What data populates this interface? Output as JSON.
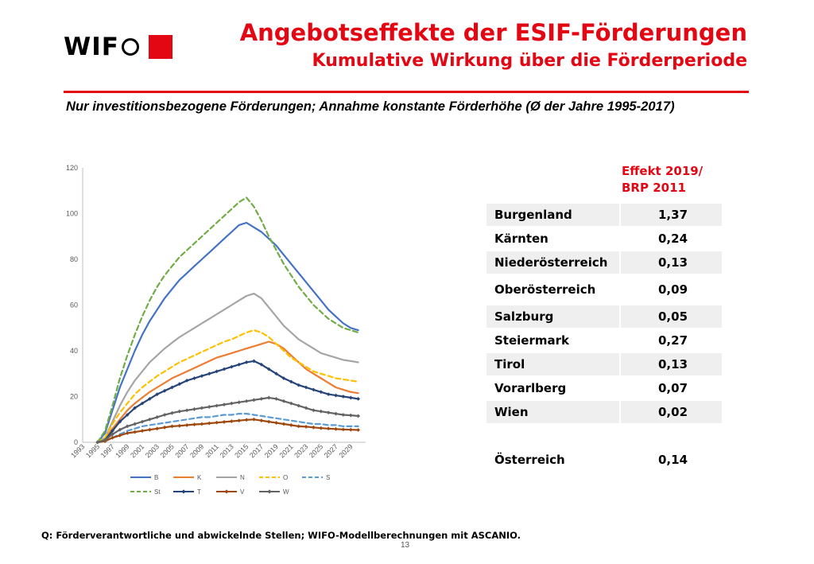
{
  "logo": {
    "text_wi": "WI",
    "text_f": "F",
    "brand_color": "#e30613"
  },
  "header": {
    "title": "Angebotseffekte der ESIF-Förderungen",
    "subtitle": "Kumulative Wirkung über die Förderperiode",
    "note": "Nur investitionsbezogene Förderungen; Annahme konstante Förderhöhe (Ø der Jahre 1995-2017)"
  },
  "chart_data": {
    "type": "line",
    "title": "",
    "xlabel": "",
    "ylabel": "",
    "ylim": [
      0,
      120
    ],
    "y_ticks": [
      "0",
      "20",
      "40",
      "60",
      "80",
      "100",
      "120"
    ],
    "x_tick_labels": [
      "1993",
      "1995",
      "1997",
      "1999",
      "2001",
      "2003",
      "2005",
      "2007",
      "2009",
      "2011",
      "2013",
      "2015",
      "2017",
      "2019",
      "2021",
      "2023",
      "2025",
      "2027",
      "2029"
    ],
    "x_range": [
      1993,
      2031
    ],
    "grid": false,
    "legend_position": "bottom",
    "x": [
      1995,
      1996,
      1997,
      1998,
      1999,
      2000,
      2001,
      2002,
      2003,
      2004,
      2005,
      2006,
      2007,
      2008,
      2009,
      2010,
      2011,
      2012,
      2013,
      2014,
      2015,
      2016,
      2017,
      2018,
      2019,
      2020,
      2021,
      2022,
      2023,
      2024,
      2025,
      2026,
      2027,
      2028,
      2029,
      2030
    ],
    "series": [
      {
        "name": "B",
        "color": "#4472c4",
        "dash": false,
        "marker": "none",
        "values": [
          0,
          4,
          14,
          24,
          32,
          40,
          47,
          53,
          58,
          63,
          67,
          71,
          74,
          77,
          80,
          83,
          86,
          89,
          92,
          95,
          96,
          94,
          92,
          89,
          86,
          82,
          78,
          74,
          70,
          66,
          62,
          58,
          55,
          52,
          50,
          49
        ]
      },
      {
        "name": "K",
        "color": "#ed7d31",
        "dash": false,
        "marker": "none",
        "values": [
          0,
          1.5,
          6,
          10,
          14,
          17,
          19.5,
          22,
          24,
          26,
          28,
          29.5,
          31,
          32.5,
          34,
          35.5,
          37,
          38,
          39,
          40,
          41,
          42,
          43,
          44,
          43,
          41,
          38,
          35,
          32,
          30,
          28,
          26,
          24,
          23,
          22,
          21.5
        ]
      },
      {
        "name": "N",
        "color": "#a5a5a5",
        "dash": false,
        "marker": "none",
        "values": [
          0,
          2,
          9,
          16,
          22,
          27,
          31,
          35,
          38,
          41,
          43.5,
          46,
          48,
          50,
          52,
          54,
          56,
          58,
          60,
          62,
          64,
          65,
          63,
          59,
          55,
          51,
          48,
          45,
          43,
          41,
          39,
          38,
          37,
          36,
          35.5,
          35
        ]
      },
      {
        "name": "O",
        "color": "#ffc000",
        "dash": true,
        "marker": "none",
        "values": [
          0,
          2,
          8,
          13,
          17,
          21,
          24,
          26.5,
          29,
          31,
          33,
          35,
          36.5,
          38,
          39.5,
          41,
          42.5,
          44,
          45,
          46.5,
          48,
          49,
          48,
          46,
          43,
          40,
          37,
          35,
          33,
          31,
          30,
          29,
          28,
          27.5,
          27,
          26.5
        ]
      },
      {
        "name": "S",
        "color": "#5b9bd5",
        "dash": true,
        "marker": "none",
        "values": [
          0,
          0.5,
          2,
          3.5,
          5,
          6,
          7,
          7.5,
          8,
          8.5,
          9,
          9.5,
          10,
          10.5,
          11,
          11,
          11.5,
          12,
          12,
          12.5,
          12.5,
          12,
          11.5,
          11,
          10.5,
          10,
          9.5,
          9,
          8.5,
          8,
          8,
          7.5,
          7.5,
          7,
          7,
          7
        ]
      },
      {
        "name": "St",
        "color": "#70ad47",
        "dash": true,
        "marker": "none",
        "values": [
          0,
          5,
          16,
          28,
          38,
          47,
          55,
          62,
          68,
          73,
          77,
          81,
          84,
          87,
          90,
          93,
          96,
          99,
          102,
          105,
          107,
          103,
          97,
          90,
          84,
          78,
          73,
          68,
          64,
          60,
          57,
          54,
          52,
          50,
          49,
          48
        ]
      },
      {
        "name": "T",
        "color": "#264478",
        "dash": false,
        "marker": "diamond",
        "values": [
          0,
          1,
          5,
          9,
          12,
          15,
          17,
          19,
          21,
          22.5,
          24,
          25.5,
          27,
          28,
          29,
          30,
          31,
          32,
          33,
          34,
          35,
          35.5,
          34,
          32,
          30,
          28,
          26.5,
          25,
          24,
          23,
          22,
          21,
          20.5,
          20,
          19.5,
          19
        ]
      },
      {
        "name": "V",
        "color": "#9e480e",
        "dash": false,
        "marker": "diamond",
        "values": [
          0,
          0.5,
          2,
          3,
          4,
          4.5,
          5,
          5.5,
          6,
          6.5,
          7,
          7.2,
          7.5,
          7.8,
          8,
          8.3,
          8.6,
          8.9,
          9.2,
          9.5,
          9.8,
          10,
          9.5,
          9,
          8.5,
          8,
          7.5,
          7,
          6.8,
          6.5,
          6.2,
          6,
          5.8,
          5.6,
          5.5,
          5.4
        ]
      },
      {
        "name": "W",
        "color": "#636363",
        "dash": false,
        "marker": "diamond",
        "values": [
          0,
          1,
          3.5,
          5.5,
          7,
          8,
          9,
          10,
          11,
          12,
          12.8,
          13.5,
          14,
          14.5,
          15,
          15.5,
          16,
          16.5,
          17,
          17.5,
          18,
          18.5,
          19,
          19.5,
          19,
          18,
          17,
          16,
          15,
          14,
          13.5,
          13,
          12.5,
          12,
          11.8,
          11.5
        ]
      }
    ]
  },
  "table": {
    "header_line1": "Effekt 2019/",
    "header_line2": "BRP 2011",
    "rows": [
      {
        "region": "Burgenland",
        "value": "1,37"
      },
      {
        "region": "Kärnten",
        "value": "0,24"
      },
      {
        "region": "Niederösterreich",
        "value": "0,13"
      },
      {
        "region": "Oberösterreich",
        "value": "0,09"
      },
      {
        "region": "Salzburg",
        "value": "0,05"
      },
      {
        "region": "Steiermark",
        "value": "0,27"
      },
      {
        "region": "Tirol",
        "value": "0,13"
      },
      {
        "region": "Vorarlberg",
        "value": "0,07"
      },
      {
        "region": "Wien",
        "value": "0,02"
      }
    ],
    "total": {
      "region": "Österreich",
      "value": "0,14"
    }
  },
  "footer": {
    "source": "Q: Förderverantwortliche und abwickelnde Stellen; WIFO-Modellberechnungen mit ASCANIO.",
    "page_number": "13"
  }
}
